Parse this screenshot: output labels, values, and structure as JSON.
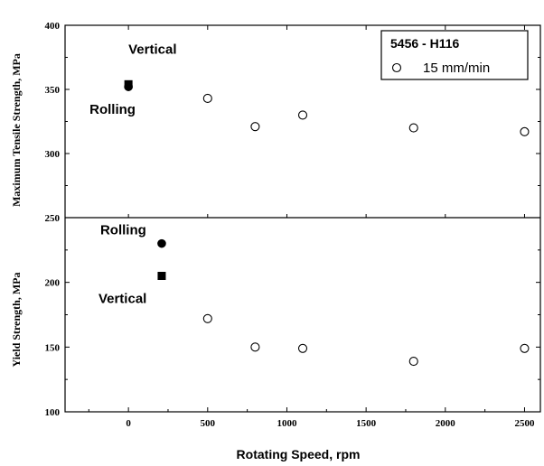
{
  "chart_data": {
    "type": "scatter",
    "x_label": "Rotating Speed, rpm",
    "xlim": [
      -400,
      2600
    ],
    "x_ticks": [
      "0",
      "500",
      "1000",
      "1500",
      "2000",
      "2500"
    ],
    "x_tick_values": [
      0,
      500,
      1000,
      1500,
      2000,
      2500
    ],
    "legend": {
      "position": "top-right",
      "title": "5456 - H116",
      "entry": "15 mm/min"
    },
    "panels": [
      {
        "id": "top",
        "ylabel": "Maximum Tensile Strength, MPa",
        "ylim": [
          250,
          400
        ],
        "y_ticks": [
          "400",
          "350",
          "300",
          "250"
        ],
        "y_tick_values": [
          400,
          350,
          300,
          250
        ],
        "base_metal": [
          {
            "label": "Vertical",
            "x": 0,
            "y": 354,
            "marker": "square"
          },
          {
            "label": "Rolling",
            "x": 0,
            "y": 352,
            "marker": "circle"
          }
        ],
        "series": [
          {
            "marker": "open-circle",
            "points": [
              [
                500,
                343
              ],
              [
                800,
                321
              ],
              [
                1100,
                330
              ],
              [
                1800,
                320
              ],
              [
                2500,
                317
              ]
            ]
          }
        ]
      },
      {
        "id": "bottom",
        "ylabel": "Yield Strength, MPa",
        "ylim": [
          100,
          250
        ],
        "y_ticks": [
          "200",
          "150",
          "100"
        ],
        "y_tick_values": [
          200,
          150,
          100
        ],
        "base_metal": [
          {
            "label": "Rolling",
            "x": 210,
            "y": 230,
            "marker": "circle"
          },
          {
            "label": "Vertical",
            "x": 210,
            "y": 205,
            "marker": "square"
          }
        ],
        "series": [
          {
            "marker": "open-circle",
            "points": [
              [
                500,
                172
              ],
              [
                800,
                150
              ],
              [
                1100,
                149
              ],
              [
                1800,
                139
              ],
              [
                2500,
                149
              ]
            ]
          }
        ]
      }
    ]
  }
}
